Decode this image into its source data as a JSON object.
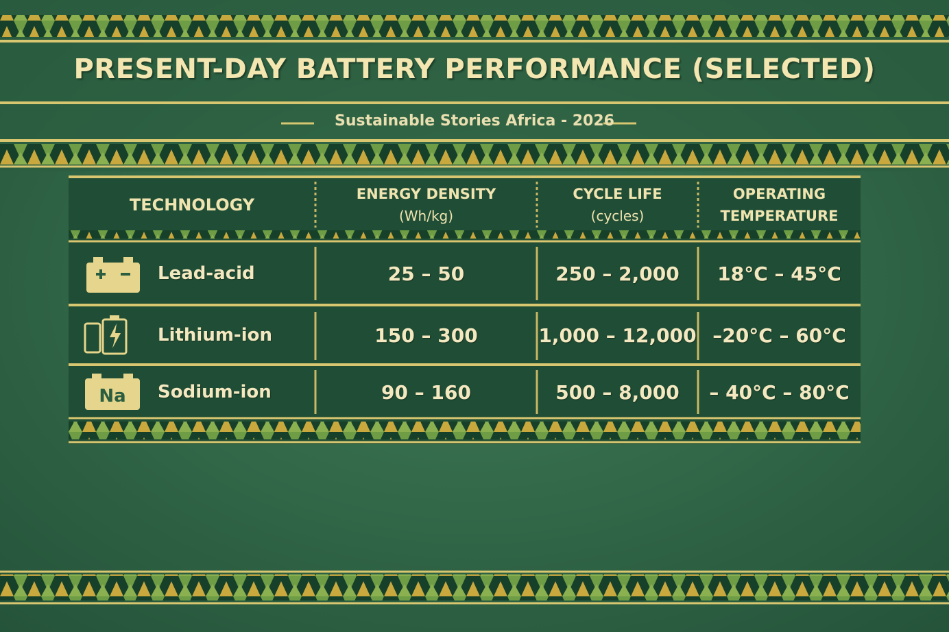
{
  "header": {
    "title": "PRESENT-DAY BATTERY PERFORMANCE (SELECTED)",
    "subtitle": "Sustainable Stories Africa - 2026"
  },
  "table": {
    "columns": [
      [
        "TECHNOLOGY"
      ],
      [
        "ENERGY DENSITY",
        "(Wh/kg)"
      ],
      [
        "CYCLE LIFE",
        "(cycles)"
      ],
      [
        "OPERATING",
        "TEMPERATURE"
      ]
    ],
    "rows": [
      [
        "Lead-acid",
        "25 – 50",
        "250 – 2,000",
        "18°C – 45°C"
      ],
      [
        "Lithium-ion",
        "150 – 300",
        "1,000 – 12,000",
        "–20°C – 60°C"
      ],
      [
        "Sodium-ion",
        "90 – 160",
        "500 – 8,000",
        "– 40°C – 80°C"
      ]
    ],
    "sodium_icon_label": "Na"
  }
}
